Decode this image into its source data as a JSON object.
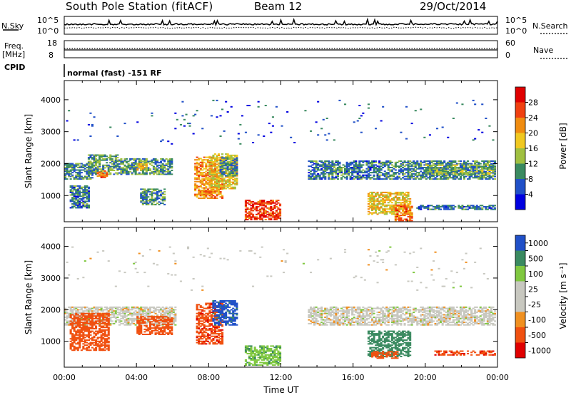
{
  "header": {
    "station": "South Pole Station (fitACF)",
    "beam": "Beam 12",
    "date": "29/Oct/2014"
  },
  "top_panels": {
    "nsky_label": "N.Sky",
    "nsearch_label": "N.Search",
    "noise_ticks": [
      "10^5",
      "10^0"
    ],
    "freq_label_1": "Freq.",
    "freq_label_2": "[MHz]",
    "freq_ticks": [
      "18",
      "8"
    ],
    "nave_ticks": [
      "60",
      "0"
    ],
    "nave_label": "Nave",
    "cpid_label": "CPID",
    "cpid_text": "normal (fast) -151 RF"
  },
  "colors": {
    "power_scale": [
      "#0000e0",
      "#2050c8",
      "#3a8a60",
      "#a0c040",
      "#f0c820",
      "#f08c10",
      "#f04010",
      "#e00000"
    ],
    "velocity_scale": [
      "#e00000",
      "#f05010",
      "#f09020",
      "#c8c8c0",
      "#c8c8c0",
      "#80c840",
      "#3a8a60",
      "#2050c8"
    ]
  },
  "chart_data": [
    {
      "type": "heatmap",
      "name": "power",
      "ylabel": "Slant Range [km]",
      "ylim": [
        180,
        4600
      ],
      "yticks": [
        1000,
        2000,
        3000,
        4000
      ],
      "xlim": [
        0,
        24
      ],
      "colorbar": {
        "label": "Power [dB]",
        "ticks": [
          4,
          8,
          12,
          16,
          20,
          24,
          28
        ],
        "range": [
          0,
          32
        ]
      },
      "regions": [
        {
          "t0": 0.0,
          "t1": 1.6,
          "r0": 1500,
          "r1": 2000,
          "v": 9
        },
        {
          "t0": 1.3,
          "t1": 3.0,
          "r0": 1650,
          "r1": 2300,
          "v": 11
        },
        {
          "t0": 1.8,
          "t1": 2.4,
          "r0": 1550,
          "r1": 1800,
          "v": 24
        },
        {
          "t0": 3.0,
          "t1": 6.0,
          "r0": 1650,
          "r1": 2150,
          "v": 10
        },
        {
          "t0": 4.0,
          "t1": 4.6,
          "r0": 1780,
          "r1": 2000,
          "v": 18
        },
        {
          "t0": 0.3,
          "t1": 1.4,
          "r0": 600,
          "r1": 1300,
          "v": 8
        },
        {
          "t0": 4.2,
          "t1": 5.6,
          "r0": 700,
          "r1": 1200,
          "v": 10
        },
        {
          "t0": 7.2,
          "t1": 8.8,
          "r0": 900,
          "r1": 2200,
          "v": 22
        },
        {
          "t0": 8.0,
          "t1": 9.6,
          "r0": 1200,
          "r1": 2300,
          "v": 18
        },
        {
          "t0": 8.6,
          "t1": 9.6,
          "r0": 1600,
          "r1": 2200,
          "v": 10
        },
        {
          "t0": 10.0,
          "t1": 12.0,
          "r0": 230,
          "r1": 880,
          "v": 27
        },
        {
          "t0": 13.5,
          "t1": 17.5,
          "r0": 1500,
          "r1": 2100,
          "v": 8
        },
        {
          "t0": 14.8,
          "t1": 15.8,
          "r0": 1700,
          "r1": 1900,
          "v": 12
        },
        {
          "t0": 17.5,
          "t1": 23.9,
          "r0": 1500,
          "r1": 2100,
          "v": 9
        },
        {
          "t0": 20.0,
          "t1": 23.9,
          "r0": 1650,
          "r1": 1950,
          "v": 12
        },
        {
          "t0": 16.8,
          "t1": 19.2,
          "r0": 400,
          "r1": 1100,
          "v": 18
        },
        {
          "t0": 18.3,
          "t1": 19.3,
          "r0": 200,
          "r1": 700,
          "v": 24
        },
        {
          "t0": 19.5,
          "t1": 23.9,
          "r0": 550,
          "r1": 700,
          "v": 8
        },
        {
          "t0": 0.0,
          "t1": 23.9,
          "r0": 2600,
          "r1": 4000,
          "v": 6,
          "sparse": true
        }
      ]
    },
    {
      "type": "heatmap",
      "name": "velocity",
      "ylabel": "Slant Range [km]",
      "ylim": [
        180,
        4600
      ],
      "yticks": [
        1000,
        2000,
        3000,
        4000
      ],
      "xlabel": "Time UT",
      "xlim": [
        0,
        24
      ],
      "xticks": [
        "00:00",
        "04:00",
        "08:00",
        "12:00",
        "16:00",
        "20:00",
        "00:00"
      ],
      "colorbar": {
        "label": "Velocity [m s⁻¹]",
        "ticks": [
          "1000",
          "500",
          "100",
          "25",
          "-25",
          "-100",
          "-500",
          "-1000"
        ]
      },
      "regions": [
        {
          "t0": 0.0,
          "t1": 6.2,
          "r0": 1500,
          "r1": 2100,
          "v": 0
        },
        {
          "t0": 0.3,
          "t1": 2.5,
          "r0": 700,
          "r1": 1900,
          "v": -200
        },
        {
          "t0": 4.0,
          "t1": 6.0,
          "r0": 1200,
          "r1": 1800,
          "v": -300
        },
        {
          "t0": 7.3,
          "t1": 8.8,
          "r0": 900,
          "r1": 2200,
          "v": -400
        },
        {
          "t0": 8.2,
          "t1": 9.6,
          "r0": 1500,
          "r1": 2300,
          "v": 700
        },
        {
          "t0": 10.0,
          "t1": 12.0,
          "r0": 230,
          "r1": 880,
          "v": 80
        },
        {
          "t0": 13.5,
          "t1": 23.9,
          "r0": 1500,
          "r1": 2100,
          "v": 0
        },
        {
          "t0": 16.8,
          "t1": 19.2,
          "r0": 500,
          "r1": 1350,
          "v": 200
        },
        {
          "t0": 17.0,
          "t1": 18.5,
          "r0": 450,
          "r1": 700,
          "v": -300
        },
        {
          "t0": 20.5,
          "t1": 23.9,
          "r0": 550,
          "r1": 700,
          "v": -400
        },
        {
          "t0": 0.0,
          "t1": 23.9,
          "r0": 2600,
          "r1": 4000,
          "v": 0,
          "sparse": true
        }
      ]
    }
  ]
}
